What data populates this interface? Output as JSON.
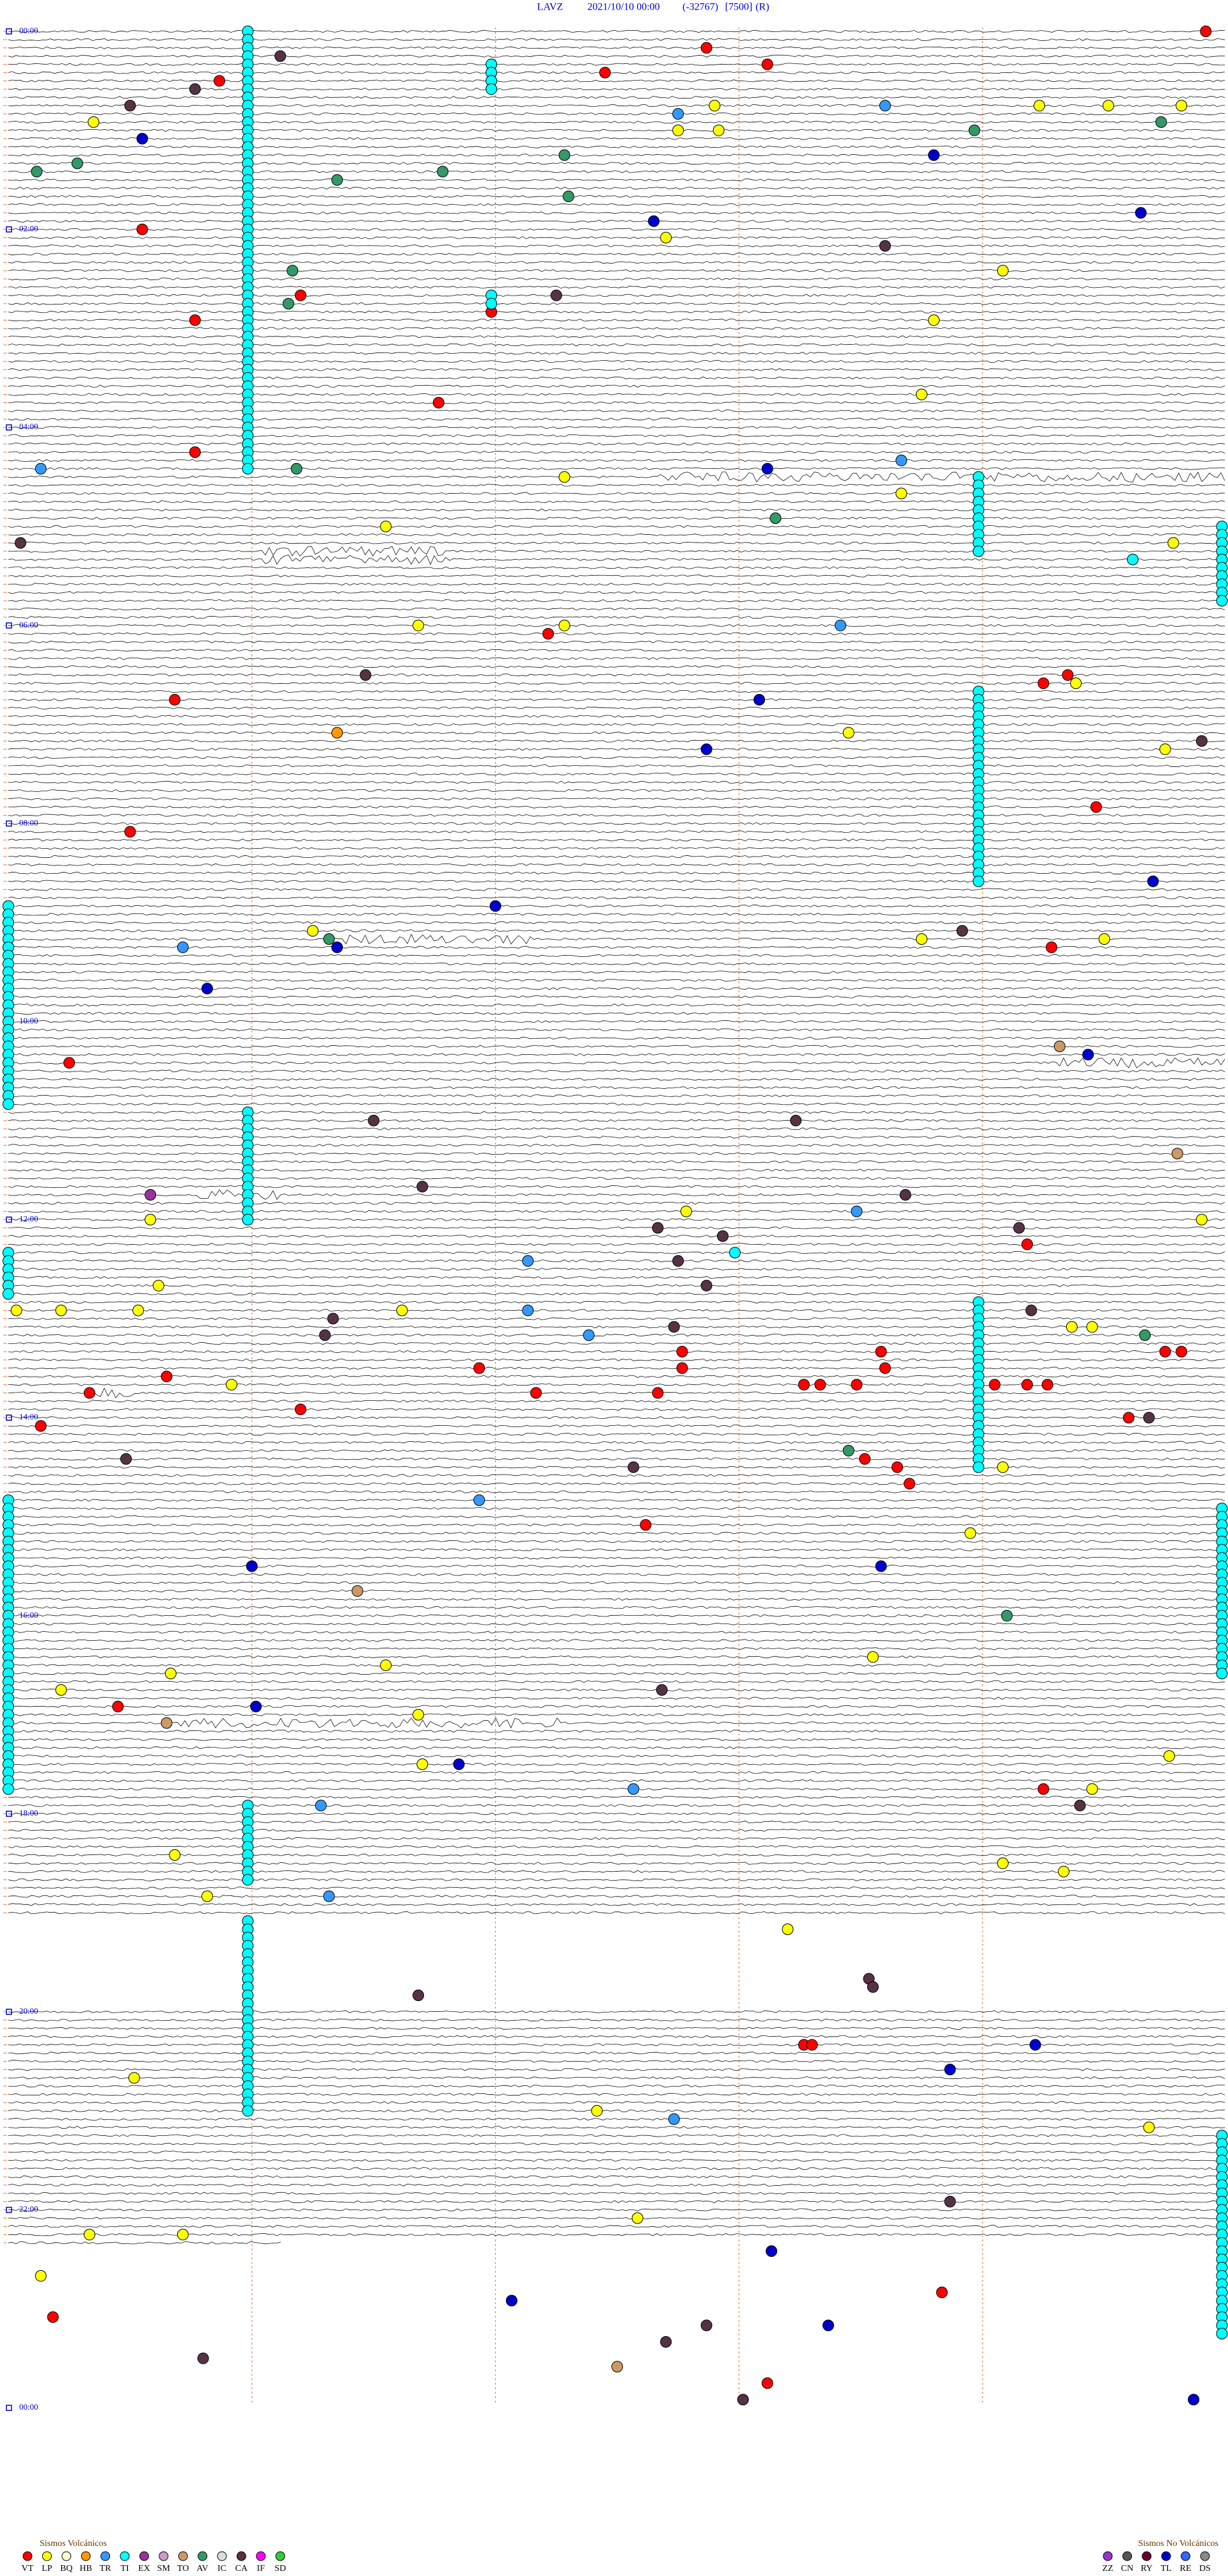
{
  "header": {
    "station": "LAVZ",
    "datetime": "2021/10/10 00:00",
    "code": "(-32767)",
    "scale": "[7500]",
    "mode": "(R)"
  },
  "hour_labels": [
    "00:00",
    "02:00",
    "04:00",
    "06:00",
    "08:00",
    "10:00",
    "12:00",
    "14:00",
    "16:00",
    "18:00",
    "20:00",
    "22:00",
    "00:00"
  ],
  "legend": {
    "volcanic_title": "Sismos Volcánicos",
    "volcanic": [
      {
        "code": "VT",
        "color": "#ff0000"
      },
      {
        "code": "LP",
        "color": "#ffff00"
      },
      {
        "code": "BQ",
        "color": "#ffffcc"
      },
      {
        "code": "HB",
        "color": "#ff9900"
      },
      {
        "code": "TR",
        "color": "#3399ff"
      },
      {
        "code": "TI",
        "color": "#00ffff"
      },
      {
        "code": "EX",
        "color": "#993399"
      },
      {
        "code": "SM",
        "color": "#cc99cc"
      },
      {
        "code": "TO",
        "color": "#cc9966"
      },
      {
        "code": "AV",
        "color": "#339966"
      },
      {
        "code": "IC",
        "color": "#dddddd"
      },
      {
        "code": "CA",
        "color": "#553344"
      },
      {
        "code": "IF",
        "color": "#ff00ff"
      },
      {
        "code": "SD",
        "color": "#33cc33"
      }
    ],
    "nonvolcanic_title": "Sismos No Volcánicos",
    "nonvolcanic": [
      {
        "code": "ZZ",
        "color": "#9933cc"
      },
      {
        "code": "CN",
        "color": "#555555"
      },
      {
        "code": "RY",
        "color": "#660033"
      },
      {
        "code": "TL",
        "color": "#0000cc"
      },
      {
        "code": "RE",
        "color": "#3366ff"
      },
      {
        "code": "DS",
        "color": "#888888"
      }
    ]
  },
  "events": [
    [
      0,
      295,
      "VT"
    ],
    [
      2,
      172,
      "VT"
    ],
    [
      4,
      187,
      "VT"
    ],
    [
      5,
      147,
      "VT"
    ],
    [
      6,
      52,
      "VT"
    ],
    [
      3,
      67,
      "CA"
    ],
    [
      7,
      46,
      "CA"
    ],
    [
      9,
      30,
      "CA"
    ],
    [
      11,
      21,
      "LP"
    ],
    [
      13,
      33,
      "TL"
    ],
    [
      16,
      17,
      "AV"
    ],
    [
      17,
      7,
      "AV"
    ],
    [
      10,
      165,
      "TR"
    ],
    [
      12,
      165,
      "LP"
    ],
    [
      9,
      174,
      "LP"
    ],
    [
      12,
      175,
      "LP"
    ],
    [
      9,
      216,
      "TR"
    ],
    [
      15,
      228,
      "TL"
    ],
    [
      12,
      238,
      "AV"
    ],
    [
      9,
      254,
      "LP"
    ],
    [
      9,
      271,
      "LP"
    ],
    [
      11,
      284,
      "AV"
    ],
    [
      9,
      289,
      "LP"
    ],
    [
      15,
      137,
      "AV"
    ],
    [
      18,
      81,
      "AV"
    ],
    [
      17,
      107,
      "AV"
    ],
    [
      20,
      138,
      "AV"
    ],
    [
      23,
      159,
      "TL"
    ],
    [
      25,
      162,
      "LP"
    ],
    [
      26,
      216,
      "CA"
    ],
    [
      29,
      245,
      "LP"
    ],
    [
      22,
      279,
      "TL"
    ],
    [
      24,
      33,
      "VT"
    ],
    [
      29,
      70,
      "AV"
    ],
    [
      32,
      72,
      "VT"
    ],
    [
      33,
      69,
      "AV"
    ],
    [
      34,
      119,
      "VT"
    ],
    [
      32,
      135,
      "CA"
    ],
    [
      35,
      46,
      "VT"
    ],
    [
      35,
      228,
      "LP"
    ],
    [
      44,
      225,
      "LP"
    ],
    [
      45,
      106,
      "VT"
    ],
    [
      51,
      46,
      "VT"
    ],
    [
      53,
      8,
      "TR"
    ],
    [
      53,
      71,
      "AV"
    ],
    [
      54,
      137,
      "LP"
    ],
    [
      53,
      187,
      "TL"
    ],
    [
      52,
      220,
      "TR"
    ],
    [
      59,
      189,
      "AV"
    ],
    [
      56,
      220,
      "LP"
    ],
    [
      60,
      93,
      "LP"
    ],
    [
      62,
      3,
      "CA"
    ],
    [
      62,
      287,
      "LP"
    ],
    [
      64,
      277,
      "TI"
    ],
    [
      73,
      133,
      "VT"
    ],
    [
      72,
      101,
      "LP"
    ],
    [
      72,
      137,
      "LP"
    ],
    [
      72,
      205,
      "TR"
    ],
    [
      78,
      88,
      "CA"
    ],
    [
      81,
      41,
      "VT"
    ],
    [
      85,
      81,
      "HB"
    ],
    [
      81,
      185,
      "TL"
    ],
    [
      87,
      172,
      "TL"
    ],
    [
      85,
      207,
      "LP"
    ],
    [
      79,
      255,
      "VT"
    ],
    [
      78,
      261,
      "VT"
    ],
    [
      79,
      263,
      "LP"
    ],
    [
      94,
      268,
      "VT"
    ],
    [
      97,
      30,
      "VT"
    ],
    [
      87,
      285,
      "LP"
    ],
    [
      86,
      294,
      "CA"
    ],
    [
      103,
      282,
      "TL"
    ],
    [
      106,
      120,
      "TL"
    ],
    [
      109,
      75,
      "LP"
    ],
    [
      110,
      79,
      "AV"
    ],
    [
      111,
      81,
      "TL"
    ],
    [
      111,
      43,
      "TR"
    ],
    [
      111,
      0,
      "LP"
    ],
    [
      109,
      235,
      "CA"
    ],
    [
      110,
      225,
      "LP"
    ],
    [
      111,
      257,
      "VT"
    ],
    [
      110,
      270,
      "LP"
    ],
    [
      116,
      49,
      "TL"
    ],
    [
      125,
      15,
      "VT"
    ],
    [
      124,
      266,
      "TL"
    ],
    [
      123,
      259,
      "TO"
    ],
    [
      132,
      90,
      "CA"
    ],
    [
      132,
      194,
      "CA"
    ],
    [
      136,
      288,
      "TO"
    ],
    [
      141,
      35,
      "EX"
    ],
    [
      140,
      102,
      "CA"
    ],
    [
      141,
      221,
      "CA"
    ],
    [
      143,
      209,
      "TR"
    ],
    [
      143,
      167,
      "LP"
    ],
    [
      145,
      160,
      "CA"
    ],
    [
      146,
      176,
      "CA"
    ],
    [
      148,
      179,
      "TI"
    ],
    [
      144,
      35,
      "LP"
    ],
    [
      145,
      249,
      "CA"
    ],
    [
      147,
      251,
      "VT"
    ],
    [
      144,
      294,
      "LP"
    ],
    [
      149,
      128,
      "TR"
    ],
    [
      149,
      165,
      "CA"
    ],
    [
      152,
      172,
      "CA"
    ],
    [
      152,
      37,
      "LP"
    ],
    [
      155,
      2,
      "LP"
    ],
    [
      155,
      13,
      "LP"
    ],
    [
      155,
      32,
      "LP"
    ],
    [
      155,
      97,
      "LP"
    ],
    [
      155,
      128,
      "TR"
    ],
    [
      156,
      80,
      "CA"
    ],
    [
      158,
      78,
      "CA"
    ],
    [
      158,
      143,
      "TR"
    ],
    [
      157,
      164,
      "CA"
    ],
    [
      155,
      252,
      "CA"
    ],
    [
      157,
      262,
      "LP"
    ],
    [
      157,
      267,
      "LP"
    ],
    [
      158,
      280,
      "AV"
    ],
    [
      160,
      285,
      "VT"
    ],
    [
      160,
      289,
      "VT"
    ],
    [
      160,
      166,
      "VT"
    ],
    [
      162,
      166,
      "VT"
    ],
    [
      160,
      215,
      "VT"
    ],
    [
      162,
      216,
      "VT"
    ],
    [
      162,
      116,
      "VT"
    ],
    [
      163,
      39,
      "VT"
    ],
    [
      164,
      55,
      "LP"
    ],
    [
      165,
      20,
      "VT"
    ],
    [
      165,
      130,
      "VT"
    ],
    [
      165,
      160,
      "VT"
    ],
    [
      164,
      196,
      "VT"
    ],
    [
      164,
      200,
      "VT"
    ],
    [
      164,
      209,
      "VT"
    ],
    [
      164,
      243,
      "VT"
    ],
    [
      164,
      251,
      "VT"
    ],
    [
      164,
      256,
      "VT"
    ],
    [
      167,
      72,
      "VT"
    ],
    [
      169,
      8,
      "VT"
    ],
    [
      168,
      276,
      "VT"
    ],
    [
      168,
      281,
      "CA"
    ],
    [
      172,
      207,
      "AV"
    ],
    [
      173,
      211,
      "VT"
    ],
    [
      174,
      219,
      "VT"
    ],
    [
      176,
      222,
      "VT"
    ],
    [
      173,
      29,
      "CA"
    ],
    [
      174,
      154,
      "CA"
    ],
    [
      174,
      245,
      "LP"
    ],
    [
      178,
      116,
      "TR"
    ],
    [
      181,
      157,
      "VT"
    ],
    [
      182,
      237,
      "LP"
    ],
    [
      186,
      60,
      "TL"
    ],
    [
      186,
      215,
      "TL"
    ],
    [
      189,
      86,
      "TO"
    ],
    [
      192,
      246,
      "AV"
    ],
    [
      199,
      40,
      "LP"
    ],
    [
      198,
      93,
      "LP"
    ],
    [
      197,
      213,
      "LP"
    ],
    [
      201,
      13,
      "LP"
    ],
    [
      203,
      27,
      "VT"
    ],
    [
      203,
      61,
      "TL"
    ],
    [
      201,
      161,
      "CA"
    ],
    [
      205,
      39,
      "TO"
    ],
    [
      204,
      101,
      "LP"
    ],
    [
      209,
      286,
      "LP"
    ],
    [
      210,
      102,
      "LP"
    ],
    [
      210,
      111,
      "TL"
    ],
    [
      213,
      154,
      "TR"
    ],
    [
      213,
      255,
      "VT"
    ],
    [
      213,
      267,
      "LP"
    ],
    [
      215,
      264,
      "CA"
    ],
    [
      215,
      77,
      "TR"
    ],
    [
      221,
      41,
      "LP"
    ],
    [
      222,
      245,
      "LP"
    ],
    [
      223,
      260,
      "LP"
    ],
    [
      226,
      49,
      "LP"
    ],
    [
      226,
      79,
      "TR"
    ],
    [
      230,
      192,
      "LP"
    ],
    [
      236,
      212,
      "CA"
    ],
    [
      237,
      213,
      "CA"
    ],
    [
      238,
      101,
      "CA"
    ],
    [
      244,
      196,
      "VT"
    ],
    [
      244,
      198,
      "VT"
    ],
    [
      244,
      253,
      "TL"
    ],
    [
      247,
      232,
      "TL"
    ],
    [
      248,
      31,
      "LP"
    ],
    [
      252,
      145,
      "LP"
    ],
    [
      253,
      164,
      "TR"
    ],
    [
      254,
      281,
      "LP"
    ],
    [
      263,
      232,
      "CA"
    ],
    [
      265,
      155,
      "LP"
    ],
    [
      267,
      20,
      "LP"
    ],
    [
      267,
      43,
      "LP"
    ],
    [
      269,
      188,
      "TL"
    ],
    [
      272,
      8,
      "LP"
    ],
    [
      274,
      230,
      "VT"
    ],
    [
      275,
      124,
      "TL"
    ],
    [
      277,
      11,
      "VT"
    ],
    [
      278,
      202,
      "TL"
    ],
    [
      280,
      162,
      "CA"
    ],
    [
      278,
      172,
      "CA"
    ],
    [
      282,
      48,
      "CA"
    ],
    [
      283,
      150,
      "TO"
    ],
    [
      285,
      187,
      "VT"
    ],
    [
      287,
      181,
      "CA"
    ],
    [
      287,
      292,
      "TL"
    ]
  ],
  "runs": [
    [
      0,
      54,
      59,
      "TI"
    ],
    [
      4,
      4,
      119,
      "TI"
    ],
    [
      32,
      2,
      119,
      "TI"
    ],
    [
      54,
      10,
      239,
      "TI"
    ],
    [
      80,
      24,
      239,
      "TI"
    ],
    [
      60,
      10,
      300,
      "TI"
    ],
    [
      106,
      25,
      0,
      "TI"
    ],
    [
      148,
      6,
      0,
      "TI"
    ],
    [
      178,
      36,
      0,
      "TI"
    ],
    [
      131,
      14,
      59,
      "TI"
    ],
    [
      215,
      10,
      59,
      "TI"
    ],
    [
      229,
      24,
      59,
      "TI"
    ],
    [
      154,
      21,
      239,
      "TI"
    ],
    [
      179,
      21,
      300,
      "TI"
    ],
    [
      255,
      25,
      300,
      "TI"
    ]
  ]
}
